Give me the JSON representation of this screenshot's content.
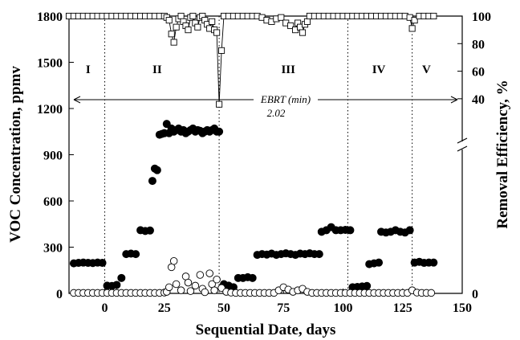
{
  "chart_data": {
    "type": "scatter",
    "xlabel": "Sequential Date, days",
    "ylabel_left": "VOC Concentration, ppmv",
    "ylabel_right": "Removal Efficiency, %",
    "xlim": [
      -15,
      150
    ],
    "x_ticks": [
      "0",
      "25",
      "50",
      "75",
      "100",
      "125",
      "150"
    ],
    "x_tick_values": [
      0,
      25,
      50,
      75,
      100,
      125,
      150
    ],
    "ylim_left": [
      0,
      1800
    ],
    "y_ticks_left": [
      "0",
      "300",
      "600",
      "900",
      "1200",
      "1500",
      "1800"
    ],
    "y_tick_values_left": [
      0,
      300,
      600,
      900,
      1200,
      1500,
      1800
    ],
    "ylim_right": [
      30,
      100
    ],
    "y_ticks_right": [
      "0",
      "40",
      "60",
      "80",
      "100"
    ],
    "y_tick_values_right": [
      40,
      60,
      80,
      100
    ],
    "right_axis_broken": true,
    "phase_boundaries": [
      0,
      48,
      102,
      129
    ],
    "phases": [
      {
        "label": "I",
        "x": -7
      },
      {
        "label": "II",
        "x": 22
      },
      {
        "label": "III",
        "x": 77
      },
      {
        "label": "IV",
        "x": 115
      },
      {
        "label": "V",
        "x": 135
      }
    ],
    "ebrt": {
      "label": "EBRT (min)",
      "value": "2.02"
    },
    "series": [
      {
        "marker": "filled-circle",
        "axis": "left",
        "points": [
          [
            -13,
            195
          ],
          [
            -11,
            198
          ],
          [
            -9,
            200
          ],
          [
            -7,
            198
          ],
          [
            -5,
            197
          ],
          [
            -3,
            200
          ],
          [
            -1,
            198
          ],
          [
            1,
            50
          ],
          [
            3,
            48
          ],
          [
            5,
            55
          ],
          [
            7,
            100
          ],
          [
            9,
            255
          ],
          [
            11,
            258
          ],
          [
            13,
            255
          ],
          [
            15,
            410
          ],
          [
            17,
            405
          ],
          [
            19,
            408
          ],
          [
            20,
            730
          ],
          [
            21,
            810
          ],
          [
            22,
            800
          ],
          [
            23,
            1030
          ],
          [
            24,
            1035
          ],
          [
            25,
            1040
          ],
          [
            26,
            1100
          ],
          [
            27,
            1040
          ],
          [
            28,
            1070
          ],
          [
            29,
            1050
          ],
          [
            30,
            1060
          ],
          [
            31,
            1070
          ],
          [
            32,
            1050
          ],
          [
            33,
            1060
          ],
          [
            34,
            1040
          ],
          [
            35,
            1050
          ],
          [
            36,
            1060
          ],
          [
            37,
            1070
          ],
          [
            38,
            1050
          ],
          [
            39,
            1060
          ],
          [
            40,
            1055
          ],
          [
            41,
            1040
          ],
          [
            42,
            1050
          ],
          [
            43,
            1060
          ],
          [
            44,
            1050
          ],
          [
            45,
            1060
          ],
          [
            46,
            1070
          ],
          [
            47,
            1050
          ],
          [
            48,
            1050
          ],
          [
            50,
            60
          ],
          [
            52,
            50
          ],
          [
            54,
            40
          ],
          [
            56,
            100
          ],
          [
            58,
            100
          ],
          [
            60,
            105
          ],
          [
            62,
            100
          ],
          [
            64,
            250
          ],
          [
            66,
            255
          ],
          [
            68,
            252
          ],
          [
            70,
            258
          ],
          [
            72,
            250
          ],
          [
            74,
            255
          ],
          [
            76,
            260
          ],
          [
            78,
            255
          ],
          [
            80,
            250
          ],
          [
            82,
            258
          ],
          [
            84,
            255
          ],
          [
            86,
            260
          ],
          [
            88,
            255
          ],
          [
            90,
            255
          ],
          [
            91,
            400
          ],
          [
            93,
            410
          ],
          [
            95,
            430
          ],
          [
            97,
            410
          ],
          [
            99,
            410
          ],
          [
            101,
            412
          ],
          [
            103,
            410
          ],
          [
            104,
            40
          ],
          [
            106,
            42
          ],
          [
            108,
            45
          ],
          [
            110,
            48
          ],
          [
            111,
            190
          ],
          [
            113,
            195
          ],
          [
            115,
            200
          ],
          [
            116,
            400
          ],
          [
            118,
            395
          ],
          [
            120,
            400
          ],
          [
            122,
            410
          ],
          [
            124,
            400
          ],
          [
            126,
            395
          ],
          [
            128,
            410
          ],
          [
            130,
            200
          ],
          [
            132,
            205
          ],
          [
            134,
            198
          ],
          [
            136,
            200
          ],
          [
            138,
            200
          ]
        ]
      },
      {
        "marker": "open-circle",
        "axis": "left",
        "points": [
          [
            -13,
            3
          ],
          [
            -11,
            3
          ],
          [
            -9,
            3
          ],
          [
            -7,
            3
          ],
          [
            -5,
            3
          ],
          [
            -3,
            3
          ],
          [
            -1,
            3
          ],
          [
            1,
            3
          ],
          [
            3,
            3
          ],
          [
            5,
            3
          ],
          [
            7,
            3
          ],
          [
            9,
            3
          ],
          [
            11,
            3
          ],
          [
            13,
            3
          ],
          [
            15,
            3
          ],
          [
            17,
            3
          ],
          [
            19,
            3
          ],
          [
            21,
            3
          ],
          [
            23,
            3
          ],
          [
            25,
            5
          ],
          [
            26,
            10
          ],
          [
            27,
            40
          ],
          [
            28,
            170
          ],
          [
            29,
            210
          ],
          [
            30,
            60
          ],
          [
            32,
            20
          ],
          [
            34,
            110
          ],
          [
            35,
            70
          ],
          [
            36,
            15
          ],
          [
            38,
            50
          ],
          [
            40,
            120
          ],
          [
            41,
            30
          ],
          [
            42,
            8
          ],
          [
            44,
            130
          ],
          [
            45,
            60
          ],
          [
            46,
            20
          ],
          [
            47,
            90
          ],
          [
            49,
            35
          ],
          [
            51,
            10
          ],
          [
            53,
            5
          ],
          [
            55,
            3
          ],
          [
            57,
            3
          ],
          [
            59,
            3
          ],
          [
            61,
            3
          ],
          [
            63,
            3
          ],
          [
            65,
            3
          ],
          [
            67,
            3
          ],
          [
            69,
            3
          ],
          [
            71,
            3
          ],
          [
            73,
            20
          ],
          [
            75,
            40
          ],
          [
            77,
            25
          ],
          [
            79,
            10
          ],
          [
            81,
            20
          ],
          [
            83,
            30
          ],
          [
            85,
            10
          ],
          [
            87,
            3
          ],
          [
            89,
            3
          ],
          [
            91,
            3
          ],
          [
            93,
            3
          ],
          [
            95,
            3
          ],
          [
            97,
            3
          ],
          [
            99,
            3
          ],
          [
            101,
            3
          ],
          [
            103,
            3
          ],
          [
            105,
            3
          ],
          [
            107,
            3
          ],
          [
            109,
            3
          ],
          [
            111,
            3
          ],
          [
            113,
            3
          ],
          [
            115,
            3
          ],
          [
            117,
            3
          ],
          [
            119,
            3
          ],
          [
            121,
            3
          ],
          [
            123,
            3
          ],
          [
            125,
            3
          ],
          [
            127,
            3
          ],
          [
            129,
            20
          ],
          [
            131,
            5
          ],
          [
            133,
            3
          ],
          [
            135,
            3
          ],
          [
            137,
            3
          ]
        ]
      },
      {
        "marker": "open-square",
        "axis": "right",
        "connected": true,
        "points": [
          [
            -15,
            100
          ],
          [
            -13,
            100
          ],
          [
            -11,
            100
          ],
          [
            -9,
            100
          ],
          [
            -7,
            100
          ],
          [
            -5,
            100
          ],
          [
            -3,
            100
          ],
          [
            -1,
            100
          ],
          [
            1,
            100
          ],
          [
            3,
            100
          ],
          [
            5,
            100
          ],
          [
            7,
            100
          ],
          [
            9,
            100
          ],
          [
            11,
            100
          ],
          [
            13,
            100
          ],
          [
            15,
            100
          ],
          [
            17,
            100
          ],
          [
            19,
            100
          ],
          [
            21,
            100
          ],
          [
            23,
            100
          ],
          [
            25,
            100
          ],
          [
            26,
            99
          ],
          [
            27,
            97
          ],
          [
            28,
            87
          ],
          [
            29,
            81
          ],
          [
            30,
            92
          ],
          [
            31,
            98
          ],
          [
            32,
            100
          ],
          [
            33,
            96
          ],
          [
            34,
            93
          ],
          [
            35,
            90
          ],
          [
            36,
            99
          ],
          [
            37,
            100
          ],
          [
            38,
            95
          ],
          [
            39,
            92
          ],
          [
            40,
            99
          ],
          [
            41,
            100
          ],
          [
            42,
            97
          ],
          [
            43,
            94
          ],
          [
            44,
            91
          ],
          [
            45,
            96
          ],
          [
            46,
            90
          ],
          [
            47,
            88
          ],
          [
            48,
            36
          ],
          [
            49,
            75
          ],
          [
            50,
            100
          ],
          [
            52,
            100
          ],
          [
            54,
            100
          ],
          [
            56,
            100
          ],
          [
            58,
            100
          ],
          [
            60,
            100
          ],
          [
            62,
            100
          ],
          [
            64,
            100
          ],
          [
            66,
            99
          ],
          [
            68,
            97
          ],
          [
            70,
            96
          ],
          [
            72,
            98
          ],
          [
            74,
            99
          ],
          [
            76,
            95
          ],
          [
            78,
            93
          ],
          [
            80,
            90
          ],
          [
            81,
            95
          ],
          [
            82,
            92
          ],
          [
            83,
            88
          ],
          [
            84,
            94
          ],
          [
            85,
            96
          ],
          [
            86,
            100
          ],
          [
            88,
            100
          ],
          [
            90,
            100
          ],
          [
            92,
            100
          ],
          [
            94,
            100
          ],
          [
            96,
            100
          ],
          [
            98,
            100
          ],
          [
            100,
            100
          ],
          [
            102,
            100
          ],
          [
            104,
            100
          ],
          [
            106,
            100
          ],
          [
            108,
            100
          ],
          [
            110,
            100
          ],
          [
            112,
            100
          ],
          [
            114,
            100
          ],
          [
            116,
            100
          ],
          [
            118,
            100
          ],
          [
            120,
            100
          ],
          [
            122,
            100
          ],
          [
            124,
            100
          ],
          [
            126,
            100
          ],
          [
            128,
            99
          ],
          [
            129,
            91
          ],
          [
            130,
            97
          ],
          [
            132,
            100
          ],
          [
            134,
            100
          ],
          [
            136,
            100
          ],
          [
            138,
            100
          ]
        ]
      }
    ]
  }
}
